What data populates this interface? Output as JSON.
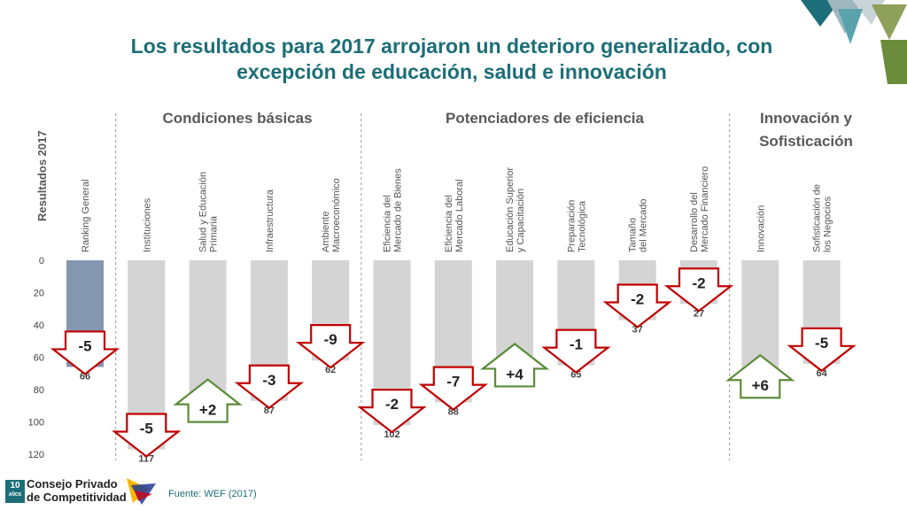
{
  "title": {
    "line1": "Los resultados para 2017 arrojaron un deterioro generalizado, con",
    "line2": "excepción de educación, salud e innovación"
  },
  "colors": {
    "title": "#1c6e78",
    "bar_highlight": "#8496b0",
    "bar": "#d4d4d4",
    "down_arrow": "#c00000",
    "up_arrow": "#5b8c3a",
    "group_header": "#595959"
  },
  "chart_data": {
    "type": "bar",
    "ylabel": "Resultados 2017",
    "y_ticks": [
      "0",
      "20",
      "40",
      "60",
      "80",
      "100",
      "120"
    ],
    "ylim": [
      0,
      120
    ],
    "y_inverted": true,
    "grid": false,
    "groups": [
      {
        "label": "Condiciones básicas",
        "category_count": 4
      },
      {
        "label": "Potenciadores de eficiencia",
        "category_count": 6
      },
      {
        "label": "Innovación y Sofisticación",
        "category_count": 2
      }
    ],
    "categories": [
      {
        "label": [
          "Ranking General"
        ],
        "value": 66,
        "change": "-5",
        "direction": "down",
        "highlight": true
      },
      {
        "label": [
          "Instituciones"
        ],
        "value": 117,
        "change": "-5",
        "direction": "down"
      },
      {
        "label": [
          "Salud y Educación",
          "Primaria"
        ],
        "value": 88,
        "change": "+2",
        "direction": "up"
      },
      {
        "label": [
          "Infraestructura"
        ],
        "value": 87,
        "change": "-3",
        "direction": "down"
      },
      {
        "label": [
          "Ambiente",
          "Macroeconómico"
        ],
        "value": 62,
        "change": "-9",
        "direction": "down"
      },
      {
        "label": [
          "Eficiencia del",
          "Mercado de Bienes"
        ],
        "value": 102,
        "change": "-2",
        "direction": "down"
      },
      {
        "label": [
          "Eficiencia del",
          "Mercado Laboral"
        ],
        "value": 88,
        "change": "-7",
        "direction": "down"
      },
      {
        "label": [
          "Educación Superior",
          "y Capacitación"
        ],
        "value": 66,
        "change": "+4",
        "direction": "up"
      },
      {
        "label": [
          "Preparación",
          "Tecnológica"
        ],
        "value": 65,
        "change": "-1",
        "direction": "down"
      },
      {
        "label": [
          "Tamaño",
          "del Mercado"
        ],
        "value": 37,
        "change": "-2",
        "direction": "down"
      },
      {
        "label": [
          "Desarrollo del",
          "Mercado Financiero"
        ],
        "value": 27,
        "change": "-2",
        "direction": "down"
      },
      {
        "label": [
          "Innovación"
        ],
        "value": 73,
        "change": "+6",
        "direction": "up"
      },
      {
        "label": [
          "Sofisticación de",
          "los Negocios"
        ],
        "value": 64,
        "change": "-5",
        "direction": "down"
      }
    ]
  },
  "footer": {
    "badge_number": "10",
    "badge_sub": "AÑOS",
    "org_line1": "Consejo Privado",
    "org_line2": "de Competitividad",
    "source": "Fuente: WEF (2017)"
  }
}
